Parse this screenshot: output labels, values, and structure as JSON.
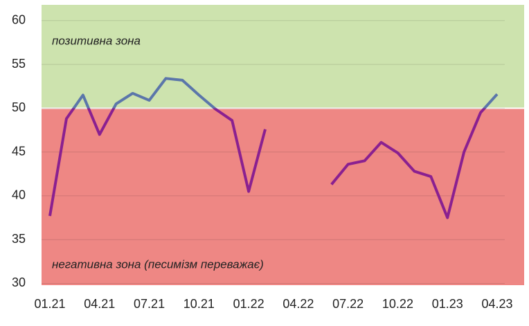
{
  "chart_data": {
    "type": "line",
    "categories": [
      "01.21",
      null,
      null,
      "04.21",
      null,
      null,
      "07.21",
      null,
      null,
      "10.21",
      null,
      null,
      "01.22",
      null,
      null,
      "04.22",
      null,
      null,
      "07.22",
      null,
      null,
      "10.22",
      null,
      null,
      "01.23",
      null,
      null,
      "04.23"
    ],
    "series": [
      {
        "color": "#8a2090",
        "color_above": "#5b76aa",
        "values": [
          37.7,
          48.8,
          51.5,
          47.0,
          50.5,
          51.7,
          50.9,
          53.4,
          53.2,
          51.5,
          49.9,
          48.6,
          40.5,
          47.6,
          null,
          null,
          null,
          41.3,
          43.6,
          44.0,
          46.1,
          44.9,
          42.8,
          42.2,
          37.5,
          45.0,
          49.5,
          51.6
        ]
      }
    ],
    "ylim": [
      29.8,
      61.8
    ],
    "yticks": [
      30,
      35,
      40,
      45,
      50,
      55,
      60
    ],
    "grid": true,
    "zones": {
      "threshold": 50,
      "above": {
        "label": "позитивна зона",
        "color": "#cde3ae"
      },
      "below": {
        "label": "негативна зона (песимізм переважає)",
        "color": "#ee8784"
      }
    }
  }
}
